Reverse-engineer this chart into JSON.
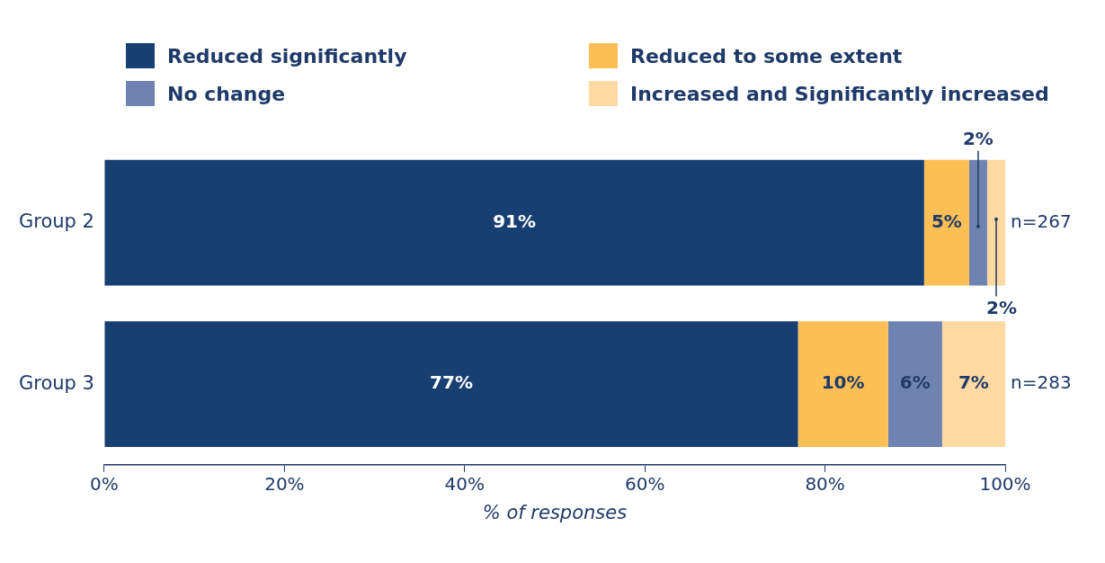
{
  "chart_data": {
    "type": "bar",
    "orientation": "horizontal",
    "stacked": true,
    "categories": [
      "Group 2",
      "Group 3"
    ],
    "series": [
      {
        "name": "Reduced significantly",
        "color": "#173f72",
        "values": [
          91,
          77
        ],
        "value_labels": [
          "91%",
          "77%"
        ]
      },
      {
        "name": "Reduced to some extent",
        "color": "#fbbf55",
        "values": [
          5,
          10
        ],
        "value_labels": [
          "5%",
          "10%"
        ]
      },
      {
        "name": "No change",
        "color": "#6f83b3",
        "values": [
          2,
          6
        ],
        "value_labels": [
          "2%",
          "6%"
        ]
      },
      {
        "name": "Increased and Significantly increased",
        "color": "#fed9a1",
        "values": [
          2,
          7
        ],
        "value_labels": [
          "2%",
          "7%"
        ]
      }
    ],
    "xlim": [
      0,
      100
    ],
    "xticks": [
      {
        "value": 0,
        "label": "0%"
      },
      {
        "value": 20,
        "label": "20%"
      },
      {
        "value": 40,
        "label": "40%"
      },
      {
        "value": 60,
        "label": "60%"
      },
      {
        "value": 80,
        "label": "80%"
      },
      {
        "value": 100,
        "label": "100%"
      }
    ],
    "xlabel": "% of responses",
    "grid": false,
    "legend": "top",
    "annotations": [
      {
        "text": "n=267",
        "x": 100,
        "y": "Group 2"
      },
      {
        "text": "n=283",
        "x": 100,
        "y": "Group 3"
      }
    ]
  }
}
